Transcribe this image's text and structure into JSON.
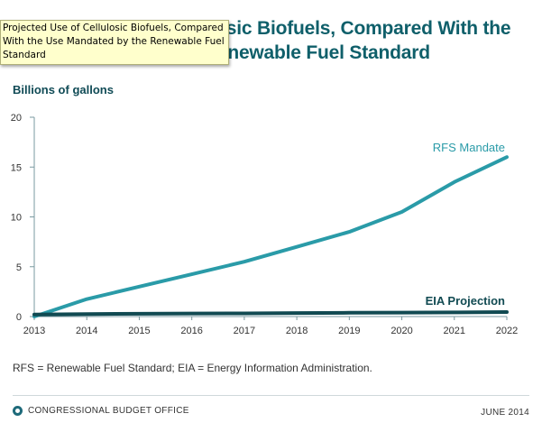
{
  "page": {
    "title": "Projected Use of Cellulosic Biofuels, Compared With the Use Mandated by the Renewable Fuel Standard",
    "tooltip": "Projected Use of Cellulosic Biofuels, Compared With the Use Mandated by the Renewable Fuel Standard",
    "footnote": "RFS = Renewable Fuel Standard; EIA = Energy Information Administration.",
    "agency": "CONGRESSIONAL BUDGET OFFICE",
    "date": "JUNE 2014"
  },
  "colors": {
    "title": "#0f5f6a",
    "rfs": "#2a9ba8",
    "eia": "#114a52",
    "axis": "#7a9aa0"
  },
  "chart_data": {
    "type": "line",
    "ylabel": "Billions of gallons",
    "xlabel": "",
    "x": [
      2013,
      2014,
      2015,
      2016,
      2017,
      2018,
      2019,
      2020,
      2021,
      2022
    ],
    "ylim": [
      0,
      20
    ],
    "yticks": [
      0,
      5,
      10,
      15,
      20
    ],
    "series": [
      {
        "name": "RFS Mandate",
        "values": [
          0,
          1.75,
          3.0,
          4.25,
          5.5,
          7.0,
          8.5,
          10.5,
          13.5,
          16.0
        ]
      },
      {
        "name": "EIA Projection",
        "values": [
          0.2,
          0.25,
          0.28,
          0.3,
          0.32,
          0.35,
          0.38,
          0.4,
          0.42,
          0.45
        ]
      }
    ],
    "grid": false
  }
}
